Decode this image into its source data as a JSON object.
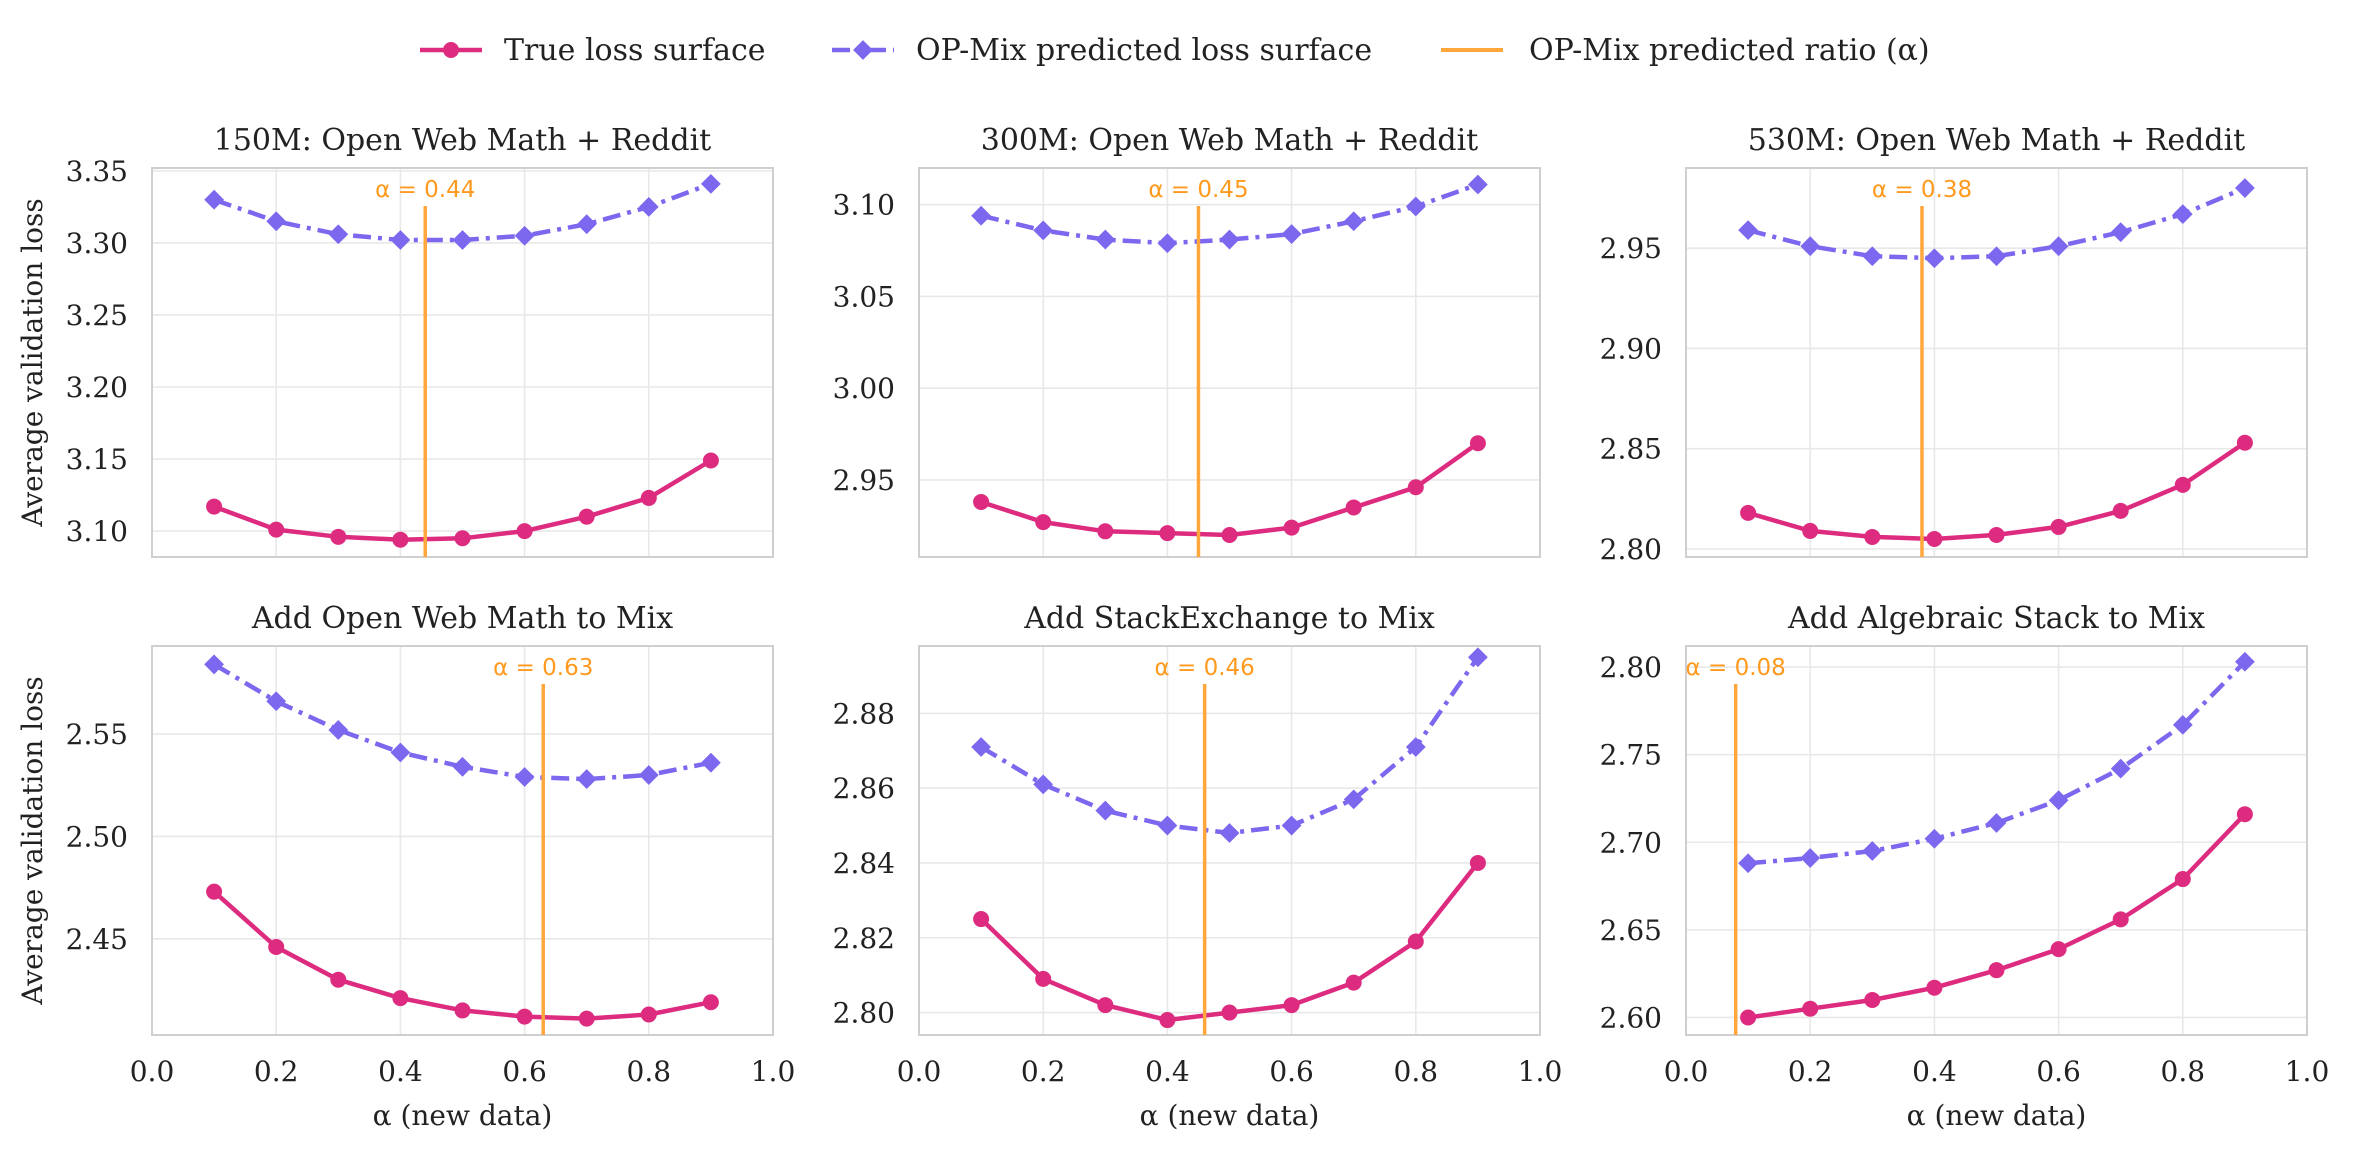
{
  "legend": {
    "true_label": "True loss surface",
    "pred_label": "OP-Mix predicted loss surface",
    "ratio_label": "OP-Mix predicted ratio (α)"
  },
  "colors": {
    "true": "#dd2c80",
    "pred": "#7b68ee",
    "ratio": "#ffa63d",
    "ratio_text": "#ff9a1f"
  },
  "chart_data": [
    {
      "type": "line",
      "title": "150M: Open Web Math + Reddit",
      "ylabel": "Average validation loss",
      "xlabel": "",
      "xlim": [
        0.0,
        1.0
      ],
      "ylim": [
        3.082,
        3.352
      ],
      "yticks": [
        3.1,
        3.15,
        3.2,
        3.25,
        3.3,
        3.35
      ],
      "ytick_labels": [
        "3.10",
        "3.15",
        "3.20",
        "3.25",
        "3.30",
        "3.35"
      ],
      "xticks": [],
      "xtick_labels": [],
      "x": [
        0.1,
        0.2,
        0.3,
        0.4,
        0.5,
        0.6,
        0.7,
        0.8,
        0.9
      ],
      "series": [
        {
          "name": "True loss surface",
          "values": [
            3.117,
            3.101,
            3.096,
            3.094,
            3.095,
            3.1,
            3.11,
            3.123,
            3.149
          ]
        },
        {
          "name": "OP-Mix predicted loss surface",
          "values": [
            3.33,
            3.315,
            3.306,
            3.302,
            3.302,
            3.305,
            3.313,
            3.325,
            3.341
          ]
        }
      ],
      "ratio": 0.44,
      "ratio_text": "α = 0.44"
    },
    {
      "type": "line",
      "title": "300M: Open Web Math + Reddit",
      "ylabel": "",
      "xlabel": "",
      "xlim": [
        0.0,
        1.0
      ],
      "ylim": [
        2.908,
        3.12
      ],
      "yticks": [
        2.95,
        3.0,
        3.05,
        3.1
      ],
      "ytick_labels": [
        "2.95",
        "3.00",
        "3.05",
        "3.10"
      ],
      "xticks": [],
      "xtick_labels": [],
      "x": [
        0.1,
        0.2,
        0.3,
        0.4,
        0.5,
        0.6,
        0.7,
        0.8,
        0.9
      ],
      "series": [
        {
          "name": "True loss surface",
          "values": [
            2.938,
            2.927,
            2.922,
            2.921,
            2.92,
            2.924,
            2.935,
            2.946,
            2.97
          ]
        },
        {
          "name": "OP-Mix predicted loss surface",
          "values": [
            3.094,
            3.086,
            3.081,
            3.079,
            3.081,
            3.084,
            3.091,
            3.099,
            3.111
          ]
        }
      ],
      "ratio": 0.45,
      "ratio_text": "α = 0.45"
    },
    {
      "type": "line",
      "title": "530M: Open Web Math + Reddit",
      "ylabel": "",
      "xlabel": "",
      "xlim": [
        0.0,
        1.0
      ],
      "ylim": [
        2.796,
        2.99
      ],
      "yticks": [
        2.8,
        2.85,
        2.9,
        2.95
      ],
      "ytick_labels": [
        "2.80",
        "2.85",
        "2.90",
        "2.95"
      ],
      "xticks": [],
      "xtick_labels": [],
      "x": [
        0.1,
        0.2,
        0.3,
        0.4,
        0.5,
        0.6,
        0.7,
        0.8,
        0.9
      ],
      "series": [
        {
          "name": "True loss surface",
          "values": [
            2.818,
            2.809,
            2.806,
            2.805,
            2.807,
            2.811,
            2.819,
            2.832,
            2.853
          ]
        },
        {
          "name": "OP-Mix predicted loss surface",
          "values": [
            2.959,
            2.951,
            2.946,
            2.945,
            2.946,
            2.951,
            2.958,
            2.967,
            2.98
          ]
        }
      ],
      "ratio": 0.38,
      "ratio_text": "α = 0.38"
    },
    {
      "type": "line",
      "title": "Add Open Web Math to Mix",
      "ylabel": "Average validation loss",
      "xlabel": "α (new data)",
      "xlim": [
        0.0,
        1.0
      ],
      "ylim": [
        2.403,
        2.593
      ],
      "yticks": [
        2.45,
        2.5,
        2.55
      ],
      "ytick_labels": [
        "2.45",
        "2.50",
        "2.55"
      ],
      "xticks": [
        0.0,
        0.2,
        0.4,
        0.6,
        0.8,
        1.0
      ],
      "xtick_labels": [
        "0.0",
        "0.2",
        "0.4",
        "0.6",
        "0.8",
        "1.0"
      ],
      "x": [
        0.1,
        0.2,
        0.3,
        0.4,
        0.5,
        0.6,
        0.7,
        0.8,
        0.9
      ],
      "series": [
        {
          "name": "True loss surface",
          "values": [
            2.473,
            2.446,
            2.43,
            2.421,
            2.415,
            2.412,
            2.411,
            2.413,
            2.419
          ]
        },
        {
          "name": "OP-Mix predicted loss surface",
          "values": [
            2.584,
            2.566,
            2.552,
            2.541,
            2.534,
            2.529,
            2.528,
            2.53,
            2.536
          ]
        }
      ],
      "ratio": 0.63,
      "ratio_text": "α = 0.63"
    },
    {
      "type": "line",
      "title": "Add StackExchange to Mix",
      "ylabel": "",
      "xlabel": "α (new data)",
      "xlim": [
        0.0,
        1.0
      ],
      "ylim": [
        2.794,
        2.898
      ],
      "yticks": [
        2.8,
        2.82,
        2.84,
        2.86,
        2.88
      ],
      "ytick_labels": [
        "2.80",
        "2.82",
        "2.84",
        "2.86",
        "2.88"
      ],
      "xticks": [
        0.0,
        0.2,
        0.4,
        0.6,
        0.8,
        1.0
      ],
      "xtick_labels": [
        "0.0",
        "0.2",
        "0.4",
        "0.6",
        "0.8",
        "1.0"
      ],
      "x": [
        0.1,
        0.2,
        0.3,
        0.4,
        0.5,
        0.6,
        0.7,
        0.8,
        0.9
      ],
      "series": [
        {
          "name": "True loss surface",
          "values": [
            2.825,
            2.809,
            2.802,
            2.798,
            2.8,
            2.802,
            2.808,
            2.819,
            2.84
          ]
        },
        {
          "name": "OP-Mix predicted loss surface",
          "values": [
            2.871,
            2.861,
            2.854,
            2.85,
            2.848,
            2.85,
            2.857,
            2.871,
            2.895
          ]
        }
      ],
      "ratio": 0.46,
      "ratio_text": "α = 0.46"
    },
    {
      "type": "line",
      "title": "Add Algebraic Stack to Mix",
      "ylabel": "",
      "xlabel": "α (new data)",
      "xlim": [
        0.0,
        1.0
      ],
      "ylim": [
        2.59,
        2.812
      ],
      "yticks": [
        2.6,
        2.65,
        2.7,
        2.75,
        2.8
      ],
      "ytick_labels": [
        "2.60",
        "2.65",
        "2.70",
        "2.75",
        "2.80"
      ],
      "xticks": [
        0.0,
        0.2,
        0.4,
        0.6,
        0.8,
        1.0
      ],
      "xtick_labels": [
        "0.0",
        "0.2",
        "0.4",
        "0.6",
        "0.8",
        "1.0"
      ],
      "x": [
        0.1,
        0.2,
        0.3,
        0.4,
        0.5,
        0.6,
        0.7,
        0.8,
        0.9
      ],
      "series": [
        {
          "name": "True loss surface",
          "values": [
            2.6,
            2.605,
            2.61,
            2.617,
            2.627,
            2.639,
            2.656,
            2.679,
            2.716
          ]
        },
        {
          "name": "OP-Mix predicted loss surface",
          "values": [
            2.688,
            2.691,
            2.695,
            2.702,
            2.711,
            2.724,
            2.742,
            2.767,
            2.803
          ]
        }
      ],
      "ratio": 0.08,
      "ratio_text": "α = 0.08"
    }
  ]
}
